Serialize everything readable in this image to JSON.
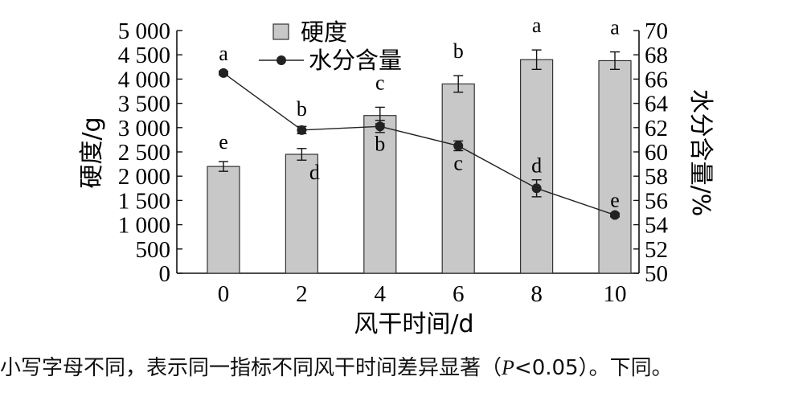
{
  "chart_data": {
    "type": "bar+line",
    "categories": [
      "0",
      "2",
      "4",
      "6",
      "8",
      "10"
    ],
    "xlabel": "风干时间/d",
    "y_left": {
      "label": "硬度/g",
      "range": [
        0,
        5000
      ],
      "ticks": [
        "0",
        "500",
        "1 000",
        "1 500",
        "2 000",
        "2 500",
        "3 000",
        "3 500",
        "4 000",
        "4 500",
        "5 000"
      ]
    },
    "y_right": {
      "label": "水分含量/%",
      "range": [
        50,
        70
      ],
      "ticks": [
        "50",
        "52",
        "54",
        "56",
        "58",
        "60",
        "62",
        "64",
        "66",
        "68",
        "70"
      ]
    },
    "legend_placement": "top-center",
    "series": [
      {
        "name": "硬度",
        "type": "bar",
        "axis": "left",
        "color": "#c8c8c8",
        "values": [
          2200,
          2450,
          3250,
          3900,
          4400,
          4380
        ],
        "errors": [
          100,
          120,
          170,
          170,
          200,
          180
        ],
        "letters": [
          "e",
          "d",
          "c",
          "b",
          "a",
          "a"
        ]
      },
      {
        "name": "水分含量",
        "type": "line",
        "axis": "right",
        "color": "#222222",
        "values": [
          66.5,
          61.8,
          62.1,
          60.5,
          57.0,
          54.8
        ],
        "errors": [
          0.15,
          0.3,
          0.5,
          0.4,
          0.7,
          0.15
        ],
        "letters": [
          "a",
          "b",
          "b",
          "c",
          "d",
          "e"
        ]
      }
    ]
  },
  "footnote": {
    "before": "小写字母不同，表示同一指标不同风干时间差异显著（",
    "italic": "P",
    "after": "<0.05）。下同。"
  }
}
